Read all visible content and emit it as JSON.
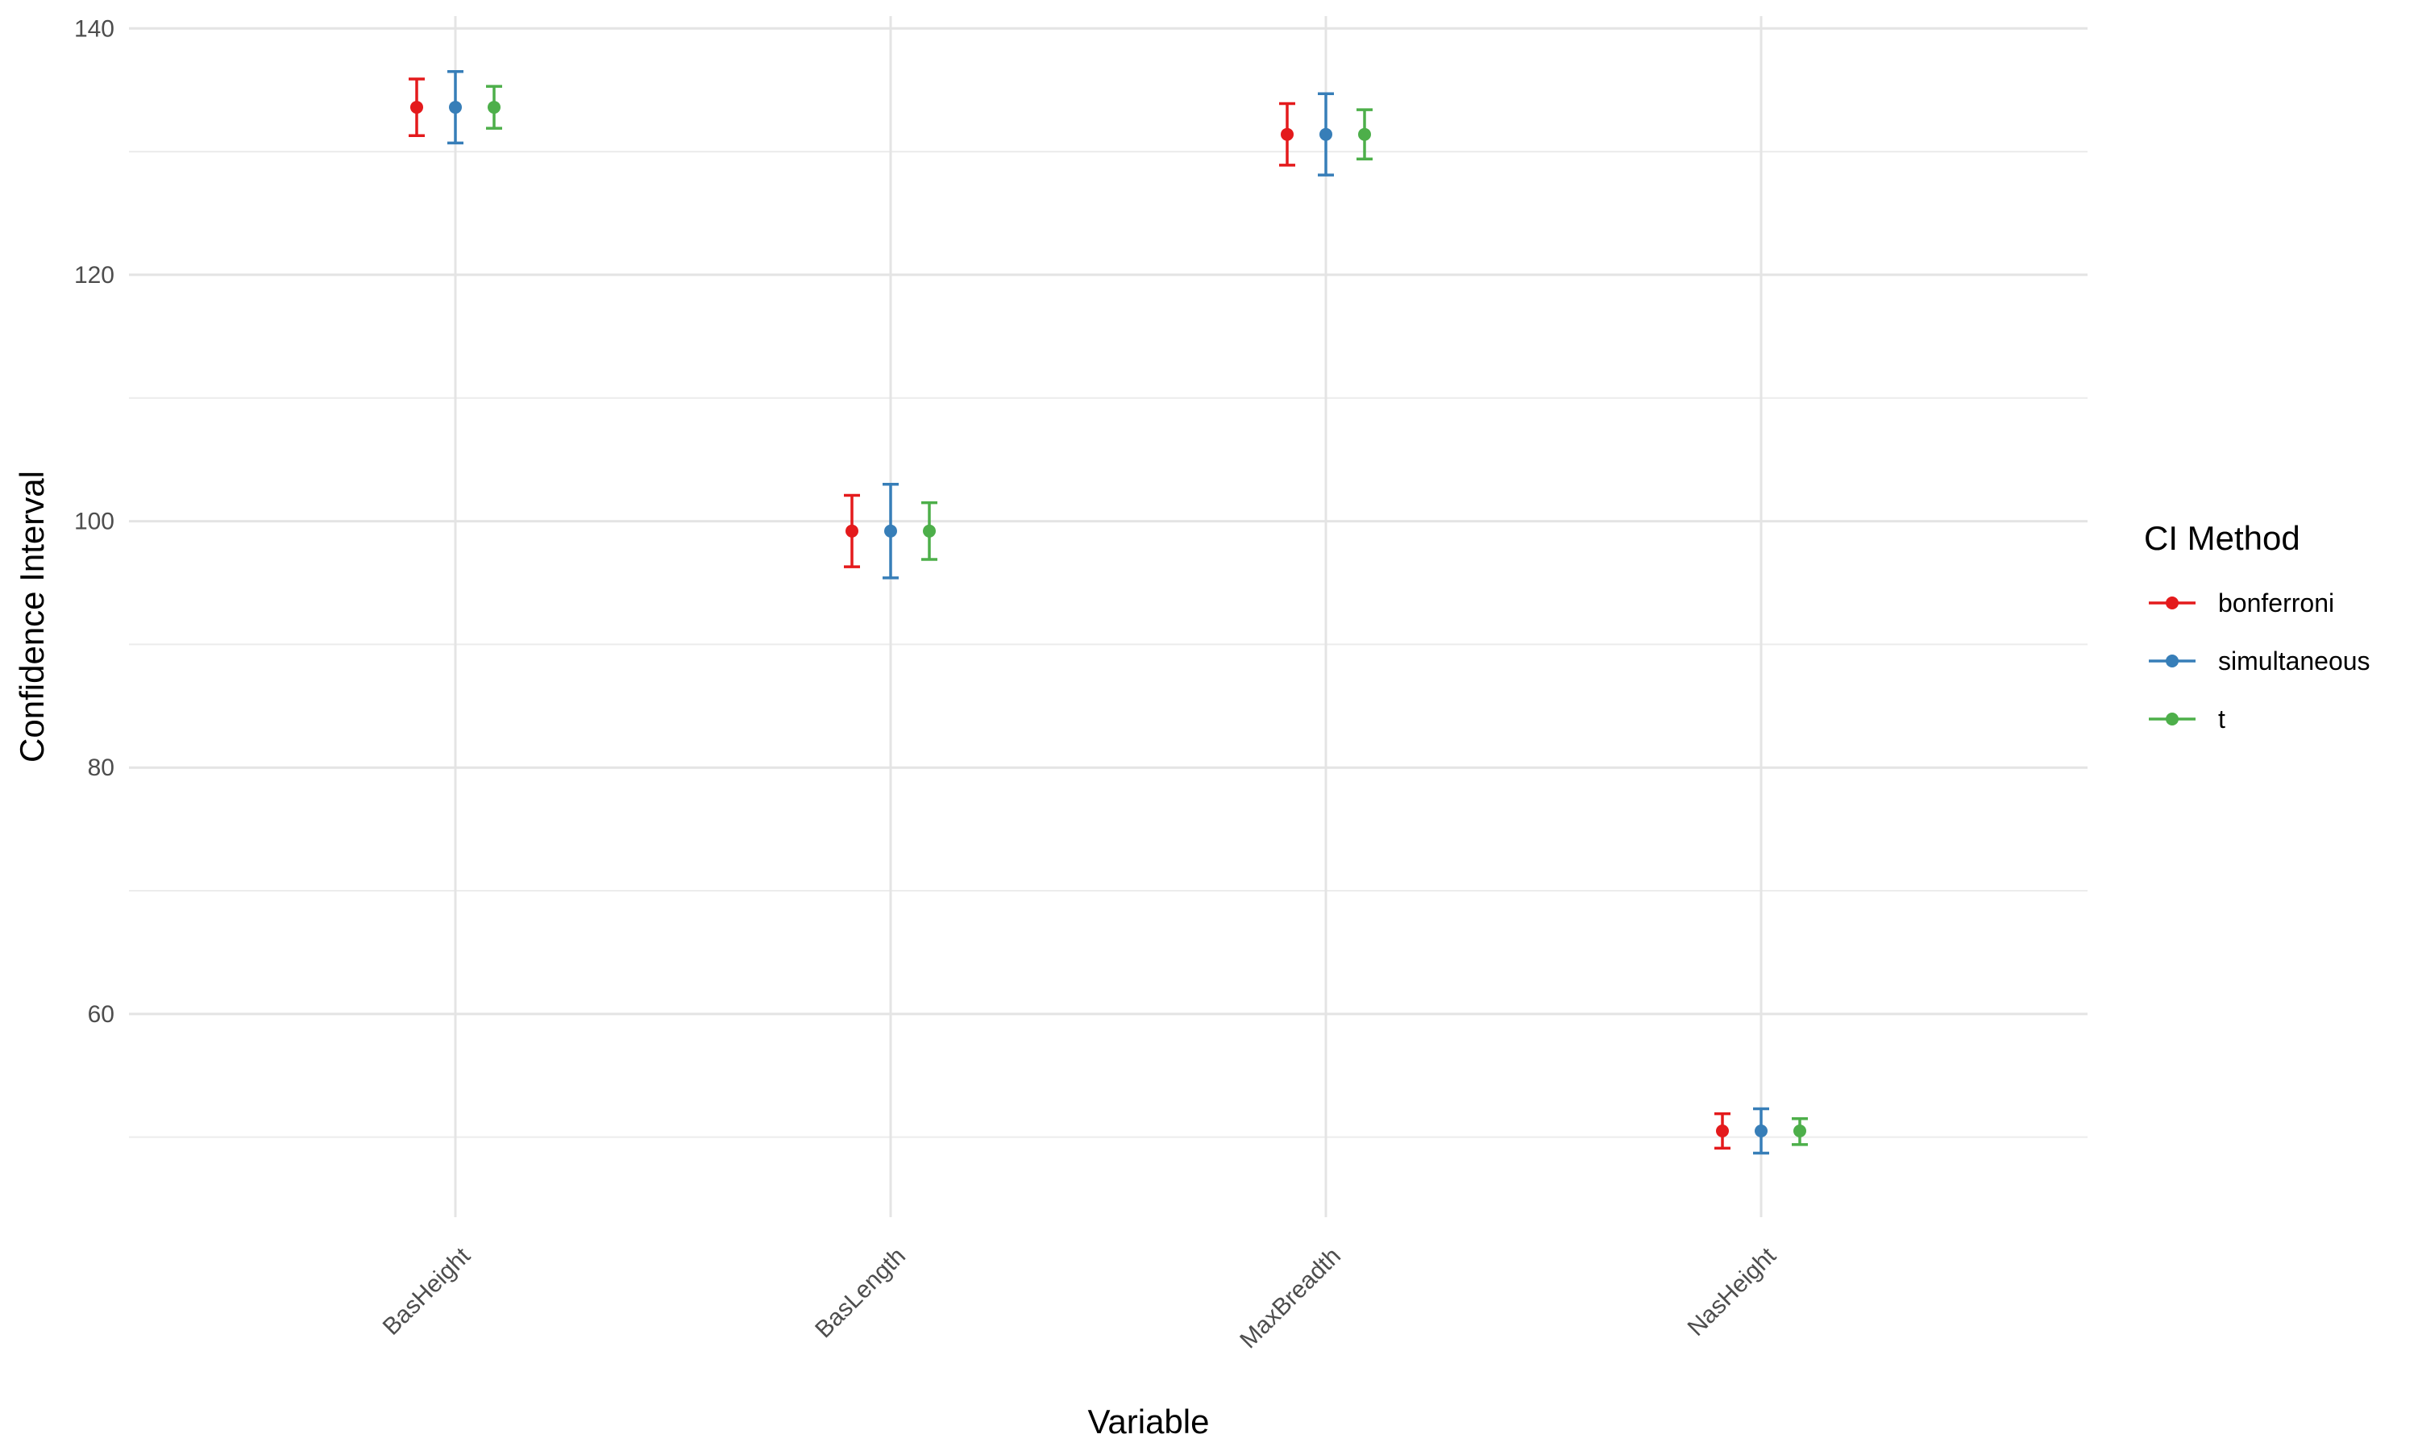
{
  "chart_data": {
    "type": "errorbar",
    "title": "",
    "xlabel": "Variable",
    "ylabel": "Confidence Interval",
    "categories": [
      "BasHeight",
      "BasLength",
      "MaxBreadth",
      "NasHeight"
    ],
    "ylim": [
      43.5,
      141
    ],
    "yticks": [
      60,
      80,
      100,
      120,
      140
    ],
    "yminor": [
      50,
      70,
      90,
      110,
      130
    ],
    "grid": true,
    "legend": {
      "title": "CI Method",
      "position": "right"
    },
    "series": [
      {
        "name": "bonferroni",
        "color": "#E41A1C",
        "values": [
          133.6,
          99.2,
          131.4,
          50.5
        ],
        "lower": [
          131.3,
          96.3,
          128.9,
          49.1
        ],
        "upper": [
          135.9,
          102.1,
          133.9,
          51.9
        ]
      },
      {
        "name": "simultaneous",
        "color": "#377EB8",
        "values": [
          133.6,
          99.2,
          131.4,
          50.5
        ],
        "lower": [
          130.7,
          95.4,
          128.1,
          48.7
        ],
        "upper": [
          136.5,
          103.0,
          134.7,
          52.3
        ]
      },
      {
        "name": "t",
        "color": "#4DAF4A",
        "values": [
          133.6,
          99.2,
          131.4,
          50.5
        ],
        "lower": [
          131.9,
          96.9,
          129.4,
          49.4
        ],
        "upper": [
          135.3,
          101.5,
          133.4,
          51.5
        ]
      }
    ]
  }
}
